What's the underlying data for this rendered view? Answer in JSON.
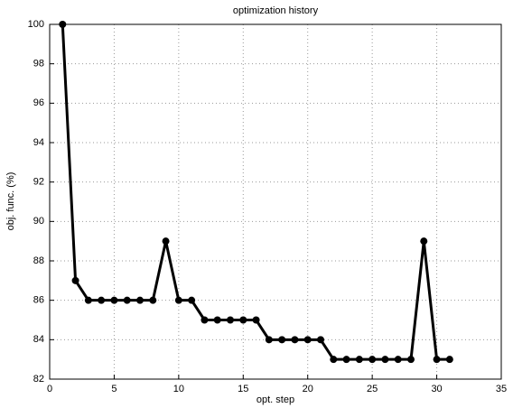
{
  "chart_data": {
    "type": "line",
    "title": "optimization history",
    "x_label": "opt. step",
    "y_label": "obj. func. (%)",
    "x": [
      1,
      2,
      3,
      4,
      5,
      6,
      7,
      8,
      9,
      10,
      11,
      12,
      13,
      14,
      15,
      16,
      17,
      18,
      19,
      20,
      21,
      22,
      23,
      24,
      25,
      26,
      27,
      28,
      29,
      30,
      31
    ],
    "series": [
      {
        "color": "#000000",
        "values": [
          100,
          87,
          86,
          86,
          86,
          86,
          86,
          86,
          89,
          86,
          86,
          85,
          85,
          85,
          85,
          85,
          84,
          84,
          84,
          84,
          84,
          83,
          83,
          83,
          83,
          83,
          83,
          83,
          89,
          83,
          83
        ]
      }
    ],
    "xlim": [
      0,
      35
    ],
    "xticks": [
      0,
      5,
      10,
      15,
      20,
      25,
      30,
      35
    ],
    "ylim": [
      82,
      100
    ],
    "yticks": [
      82,
      84,
      86,
      88,
      90,
      92,
      94,
      96,
      98,
      100
    ],
    "grid": true
  }
}
